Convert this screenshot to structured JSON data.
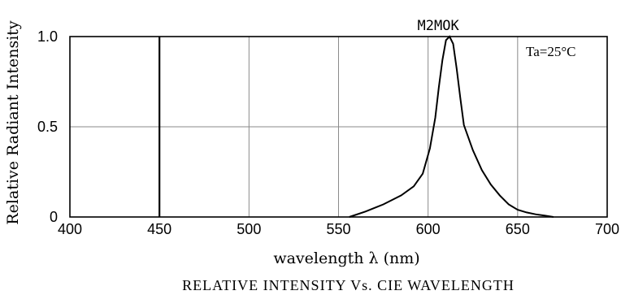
{
  "chart_data": {
    "type": "line",
    "xlabel": "wavelength λ (nm)",
    "ylabel": "Relative Radiant Intensity",
    "caption": "RELATIVE INTENSITY Vs. CIE WAVELENGTH",
    "xlim": [
      400,
      700
    ],
    "ylim": [
      0,
      1.0
    ],
    "x_ticks": [
      "400",
      "450",
      "500",
      "550",
      "600",
      "650",
      "700"
    ],
    "y_ticks": [
      "0",
      "0.5",
      "1.0"
    ],
    "grid": true,
    "annotations": {
      "peak_label": "M2MOK",
      "condition": "Ta=25°C"
    },
    "reference_line_x": 450,
    "series": [
      {
        "x": [
          556,
          565,
          575,
          585,
          592,
          597,
          601,
          604,
          606,
          608,
          610,
          612,
          614,
          616,
          618,
          620,
          625,
          630,
          635,
          640,
          645,
          650,
          655,
          660,
          665,
          670
        ],
        "y": [
          0.0,
          0.03,
          0.07,
          0.12,
          0.17,
          0.24,
          0.38,
          0.55,
          0.72,
          0.87,
          0.98,
          1.0,
          0.96,
          0.82,
          0.66,
          0.51,
          0.37,
          0.26,
          0.18,
          0.12,
          0.07,
          0.04,
          0.025,
          0.015,
          0.008,
          0.0
        ]
      }
    ]
  }
}
